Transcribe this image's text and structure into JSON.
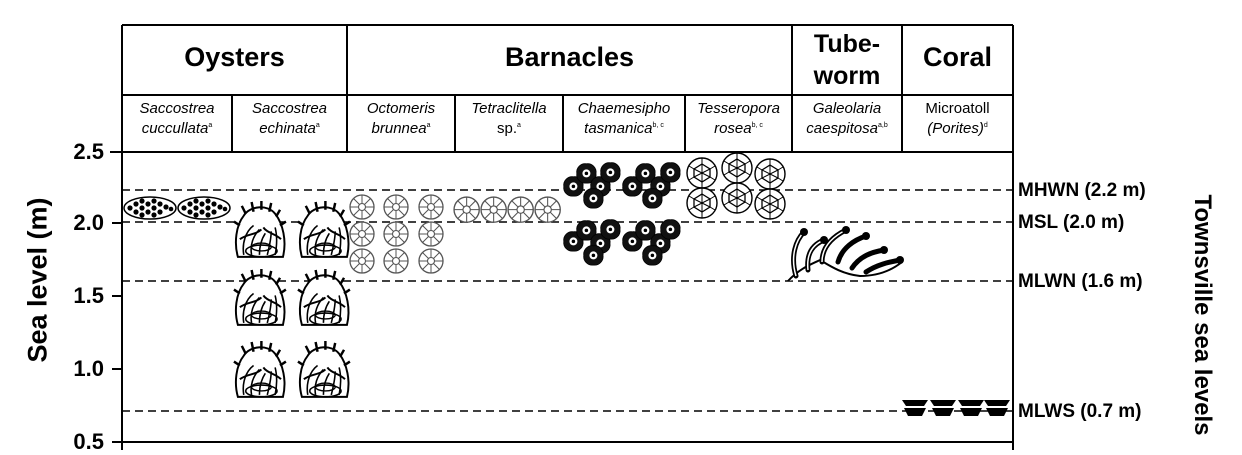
{
  "groups": [
    {
      "id": "oysters",
      "label": "Oysters"
    },
    {
      "id": "barnacles",
      "label": "Barnacles"
    },
    {
      "id": "tubeworm",
      "label_line1": "Tube-",
      "label_line2": "worm"
    },
    {
      "id": "coral",
      "label": "Coral"
    }
  ],
  "species": [
    {
      "line1": "Saccostrea",
      "line2": "cuccullata",
      "sup": "a",
      "line2_italic": true
    },
    {
      "line1": "Saccostrea",
      "line2": "echinata",
      "sup": "a",
      "line2_italic": true
    },
    {
      "line1": "Octomeris",
      "line2": "brunnea",
      "sup": "a",
      "line2_italic": true
    },
    {
      "line1": "Tetraclitella",
      "line2": "sp.",
      "sup": "a",
      "line2_italic": false
    },
    {
      "line1": "Chaemesipho",
      "line2": "tasmanica",
      "sup": "b, c",
      "line2_italic": true
    },
    {
      "line1": "Tesseropora",
      "line2": "rosea",
      "sup": "b, c",
      "line2_italic": true
    },
    {
      "line1": "Galeolaria",
      "line2": "caespitosa",
      "sup": "a,b",
      "line2_italic": true
    },
    {
      "line1": "Microatoll",
      "line2": "(Porites)",
      "sup": "d",
      "line2_italic": true
    }
  ],
  "y_axis": {
    "title": "Sea level (m)",
    "ticks": [
      "2.5",
      "2.0",
      "1.5",
      "1.0",
      "0.5"
    ],
    "range": [
      0.5,
      2.5
    ]
  },
  "reference_levels": [
    {
      "label": "MHWN (2.2 m)",
      "value": 2.2
    },
    {
      "label": "MSL (2.0 m)",
      "value": 2.0
    },
    {
      "label": "MLWN (1.6 m)",
      "value": 1.6
    },
    {
      "label": "MLWS (0.7 m)",
      "value": 0.7
    }
  ],
  "right_title": "Townsville sea levels",
  "colors": {
    "line": "#000000",
    "background": "#ffffff"
  },
  "icons": [
    "oyster-cluster-icon",
    "oyster-shell-icon",
    "barnacle-icon",
    "dark-barnacle-icon",
    "tubeworm-icon",
    "microatoll-icon"
  ]
}
